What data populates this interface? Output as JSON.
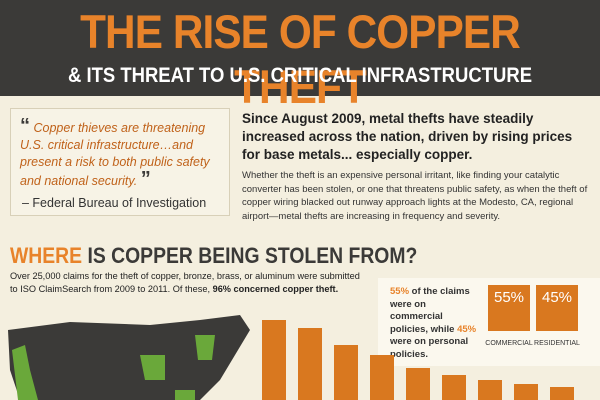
{
  "header": {
    "title": "THE RISE OF COPPER THEFT",
    "subtitle": "& ITS THREAT TO U.S. CRITICAL INFRASTRUCTURE"
  },
  "quote": {
    "open_mark": "“",
    "text": "Copper thieves are threatening U.S. critical infrastructure…and present a risk to both public safety and national security.",
    "close_mark": "”",
    "attribution": "– Federal Bureau of Investigation"
  },
  "intro": {
    "heading": "Since August 2009, metal thefts have steadily increased across the nation, driven by rising prices for base metals... especially copper.",
    "body": "Whether the theft is an expensive personal irritant, like finding your catalytic converter has been stolen, or one that threatens public safety, as when the theft of copper wiring blacked out runway approach lights at the Modesto, CA, regional airport—metal thefts are increasing in frequency and severity."
  },
  "section": {
    "title_highlight": "WHERE",
    "title_rest": "IS COPPER BEING STOLEN FROM?",
    "text_start": "Over 25,000 claims for the theft of copper, bronze, brass, or aluminum were submitted to ISO ClaimSearch from 2009 to 2011. Of these,",
    "text_bold": "96% concerned copper theft."
  },
  "policies": {
    "commercial_share": "55%",
    "text_1": "of the claims were on commercial policies, while",
    "residential_share": "45%",
    "text_2": "were on personal policies.",
    "commercial_label": "COMMERCIAL",
    "residential_label": "RESIDENTIAL"
  }
}
